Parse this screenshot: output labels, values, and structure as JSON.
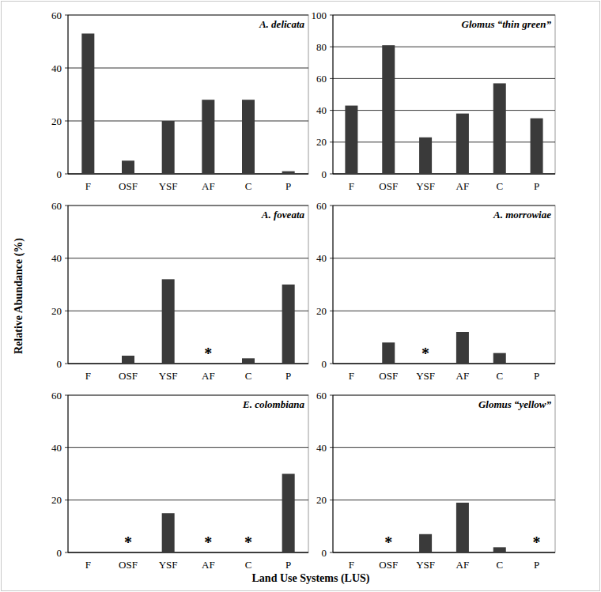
{
  "ylabel": "Relative Abundance (%)",
  "xlabel": "Land Use Systems (LUS)",
  "chart_data": [
    {
      "type": "bar",
      "title": "A. delicata",
      "categories": [
        "F",
        "OSF",
        "YSF",
        "AF",
        "C",
        "P"
      ],
      "values": [
        53,
        5,
        20,
        28,
        28,
        1
      ],
      "color": "#3a3a3a",
      "ylim": [
        0,
        60
      ],
      "yticks": [
        0,
        20,
        40,
        60
      ],
      "grid": true
    },
    {
      "type": "bar",
      "title": "Glomus “thin green”",
      "categories": [
        "F",
        "OSF",
        "YSF",
        "AF",
        "C",
        "P"
      ],
      "values": [
        43,
        81,
        23,
        38,
        57,
        35
      ],
      "color": "#3a3a3a",
      "ylim": [
        0,
        100
      ],
      "yticks": [
        0,
        20,
        40,
        60,
        80,
        100
      ],
      "grid": true
    },
    {
      "type": "bar",
      "title": "A. foveata",
      "categories": [
        "F",
        "OSF",
        "YSF",
        "AF",
        "C",
        "P"
      ],
      "values": [
        0,
        3,
        32,
        0,
        2,
        30
      ],
      "color": "#3a3a3a",
      "ylim": [
        0,
        60
      ],
      "yticks": [
        0,
        20,
        40,
        60
      ],
      "grid": true,
      "annotations": [
        {
          "x": "AF",
          "text": "*"
        }
      ]
    },
    {
      "type": "bar",
      "title": "A. morrowiae",
      "categories": [
        "F",
        "OSF",
        "YSF",
        "AF",
        "C",
        "P"
      ],
      "values": [
        0,
        8,
        0,
        12,
        4,
        0
      ],
      "color": "#3a3a3a",
      "ylim": [
        0,
        60
      ],
      "yticks": [
        0,
        20,
        40,
        60
      ],
      "grid": true,
      "annotations": [
        {
          "x": "YSF",
          "text": "*"
        }
      ]
    },
    {
      "type": "bar",
      "title": "E. colombiana",
      "categories": [
        "F",
        "OSF",
        "YSF",
        "AF",
        "C",
        "P"
      ],
      "values": [
        0,
        0,
        15,
        0,
        0,
        30
      ],
      "color": "#3a3a3a",
      "ylim": [
        0,
        60
      ],
      "yticks": [
        0,
        20,
        40,
        60
      ],
      "grid": true,
      "annotations": [
        {
          "x": "OSF",
          "text": "*"
        },
        {
          "x": "AF",
          "text": "*"
        },
        {
          "x": "C",
          "text": "*"
        }
      ]
    },
    {
      "type": "bar",
      "title": "Glomus “yellow”",
      "categories": [
        "F",
        "OSF",
        "YSF",
        "AF",
        "C",
        "P"
      ],
      "values": [
        0,
        0,
        7,
        19,
        2,
        0
      ],
      "color": "#3a3a3a",
      "ylim": [
        0,
        60
      ],
      "yticks": [
        0,
        20,
        40,
        60
      ],
      "grid": true,
      "annotations": [
        {
          "x": "OSF",
          "text": "*"
        },
        {
          "x": "P",
          "text": "*"
        }
      ]
    }
  ]
}
